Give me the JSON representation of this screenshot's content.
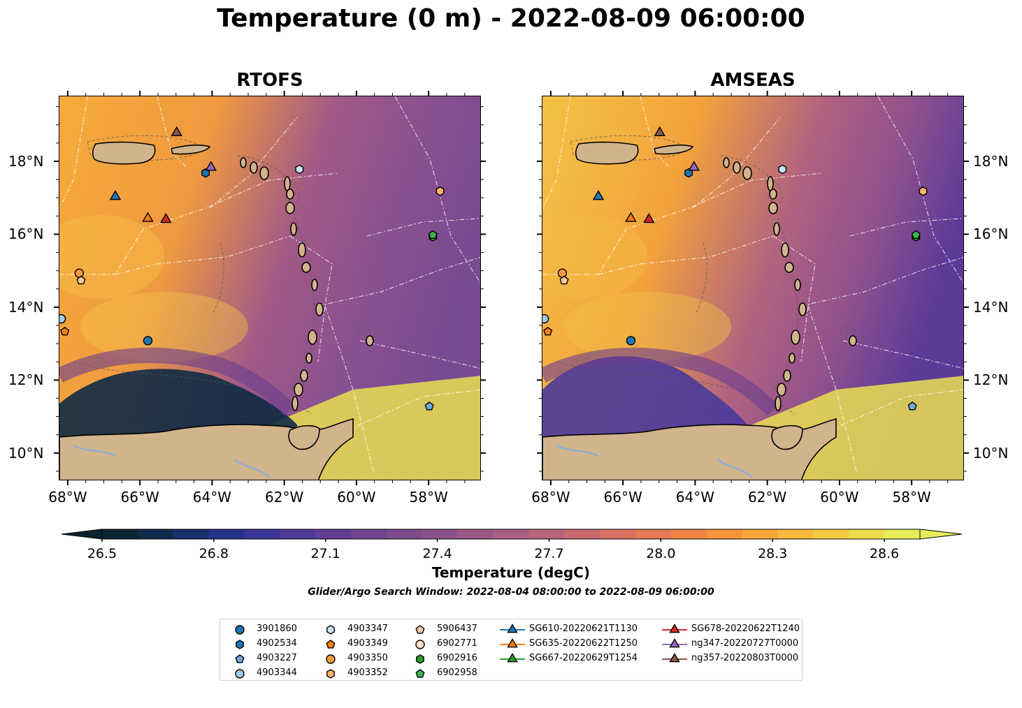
{
  "title": "Temperature (0 m) - 2022-08-09 06:00:00",
  "panels": [
    {
      "title": "RTOFS"
    },
    {
      "title": "AMSEAS"
    }
  ],
  "lon_ticks": [
    "68°W",
    "66°W",
    "64°W",
    "62°W",
    "60°W",
    "58°W"
  ],
  "lat_ticks": [
    "18°N",
    "16°N",
    "14°N",
    "12°N",
    "10°N"
  ],
  "colorbar": {
    "label": "Temperature (degC)",
    "ticks": [
      "26.5",
      "26.8",
      "27.1",
      "27.4",
      "27.7",
      "28.0",
      "28.3",
      "28.6"
    ],
    "colors": [
      "#0a2430",
      "#102a4e",
      "#182f6e",
      "#26328a",
      "#3a3496",
      "#4e3a96",
      "#603f92",
      "#704690",
      "#7e4c8c",
      "#8c528a",
      "#9a5886",
      "#aa5e80",
      "#b8647a",
      "#c86a70",
      "#d87064",
      "#e47a56",
      "#ef8647",
      "#f5943c",
      "#f9a636",
      "#f8b83c",
      "#f3ca44",
      "#eedc4e",
      "#e6ec58"
    ]
  },
  "search_window": "Glider/Argo Search Window: 2022-08-04 08:00:00 to 2022-08-09 06:00:00",
  "legend": [
    {
      "label": "3901860",
      "marker": "circle",
      "color": "#1f77b4"
    },
    {
      "label": "4902534",
      "marker": "hexagon",
      "color": "#1f77b4"
    },
    {
      "label": "4903227",
      "marker": "pentagon",
      "color": "#6fa8dc"
    },
    {
      "label": "4903344",
      "marker": "circle",
      "color": "#9fcbe8"
    },
    {
      "label": "4903347",
      "marker": "hexagon",
      "color": "#c6e4f4"
    },
    {
      "label": "4903349",
      "marker": "pentagon",
      "color": "#ff7f0e"
    },
    {
      "label": "4903350",
      "marker": "circle",
      "color": "#f59a3c"
    },
    {
      "label": "4903352",
      "marker": "hexagon",
      "color": "#ffb36b"
    },
    {
      "label": "5906437",
      "marker": "pentagon",
      "color": "#ffc79a"
    },
    {
      "label": "6902771",
      "marker": "circle",
      "color": "#ffe0c4"
    },
    {
      "label": "6902916",
      "marker": "hexagon",
      "color": "#2ca02c"
    },
    {
      "label": "6902958",
      "marker": "pentagon",
      "color": "#3cb44b"
    },
    {
      "label": "SG610-20220621T1130",
      "marker": "triangle",
      "color": "#1f77b4"
    },
    {
      "label": "SG635-20220622T1250",
      "marker": "triangle",
      "color": "#ff7f0e"
    },
    {
      "label": "SG667-20220629T1254",
      "marker": "triangle",
      "color": "#2ca02c"
    },
    {
      "label": "SG678-20220622T1240",
      "marker": "triangle",
      "color": "#d62728"
    },
    {
      "label": "ng347-20220727T0000",
      "marker": "triangle",
      "color": "#9467bd"
    },
    {
      "label": "ng357-20220803T0000",
      "marker": "triangle",
      "color": "#8c564b"
    }
  ],
  "platforms": [
    {
      "label": "3901860",
      "lon": -65.8,
      "lat": 13.1
    },
    {
      "label": "4902534",
      "lon": -64.2,
      "lat": 17.7
    },
    {
      "label": "4903227",
      "lon": -58.0,
      "lat": 11.3
    },
    {
      "label": "4903344",
      "lon": -68.2,
      "lat": 13.7
    },
    {
      "label": "4903347",
      "lon": -61.6,
      "lat": 17.8
    },
    {
      "label": "4903349",
      "lon": -68.1,
      "lat": 13.35
    },
    {
      "label": "4903350",
      "lon": -67.7,
      "lat": 14.95
    },
    {
      "label": "4903352",
      "lon": -57.7,
      "lat": 17.2
    },
    {
      "label": "5906437",
      "lon": -67.65,
      "lat": 14.75
    },
    {
      "label": "6902916",
      "lon": -57.9,
      "lat": 15.95
    },
    {
      "label": "6902958",
      "lon": -57.9,
      "lat": 16.0
    },
    {
      "label": "SG610-20220621T1130",
      "lon": -66.7,
      "lat": 17.05
    },
    {
      "label": "SG635-20220622T1250",
      "lon": -65.8,
      "lat": 16.45
    },
    {
      "label": "SG678-20220622T1240",
      "lon": -65.3,
      "lat": 16.42
    },
    {
      "label": "ng347-20220727T0000",
      "lon": -64.05,
      "lat": 17.85
    },
    {
      "label": "ng357-20220803T0000",
      "lon": -65.0,
      "lat": 18.8
    }
  ],
  "map_extent": {
    "lon": [
      -68.25,
      -56.55
    ],
    "lat": [
      9.25,
      19.8
    ]
  }
}
